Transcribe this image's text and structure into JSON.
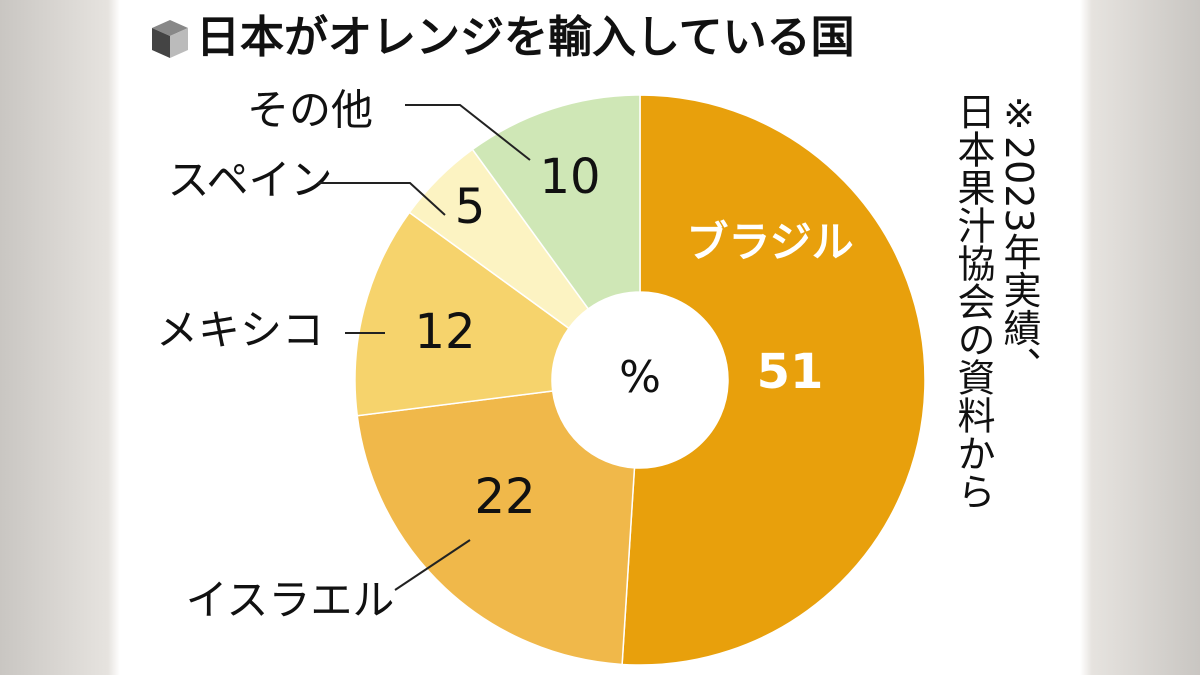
{
  "chart_data": {
    "type": "pie",
    "title": "日本がオレンジを輸入している国",
    "center_label": "%",
    "note": [
      "※2023年実績、",
      "日本果汁協会の資料から"
    ],
    "categories": [
      "ブラジル",
      "イスラエル",
      "メキシコ",
      "スペイン",
      "その他"
    ],
    "values": [
      51,
      22,
      12,
      5,
      10
    ],
    "colors": [
      "#e8a00c",
      "#f0b84a",
      "#f6d36c",
      "#fcf3c2",
      "#cfe7b6"
    ]
  }
}
